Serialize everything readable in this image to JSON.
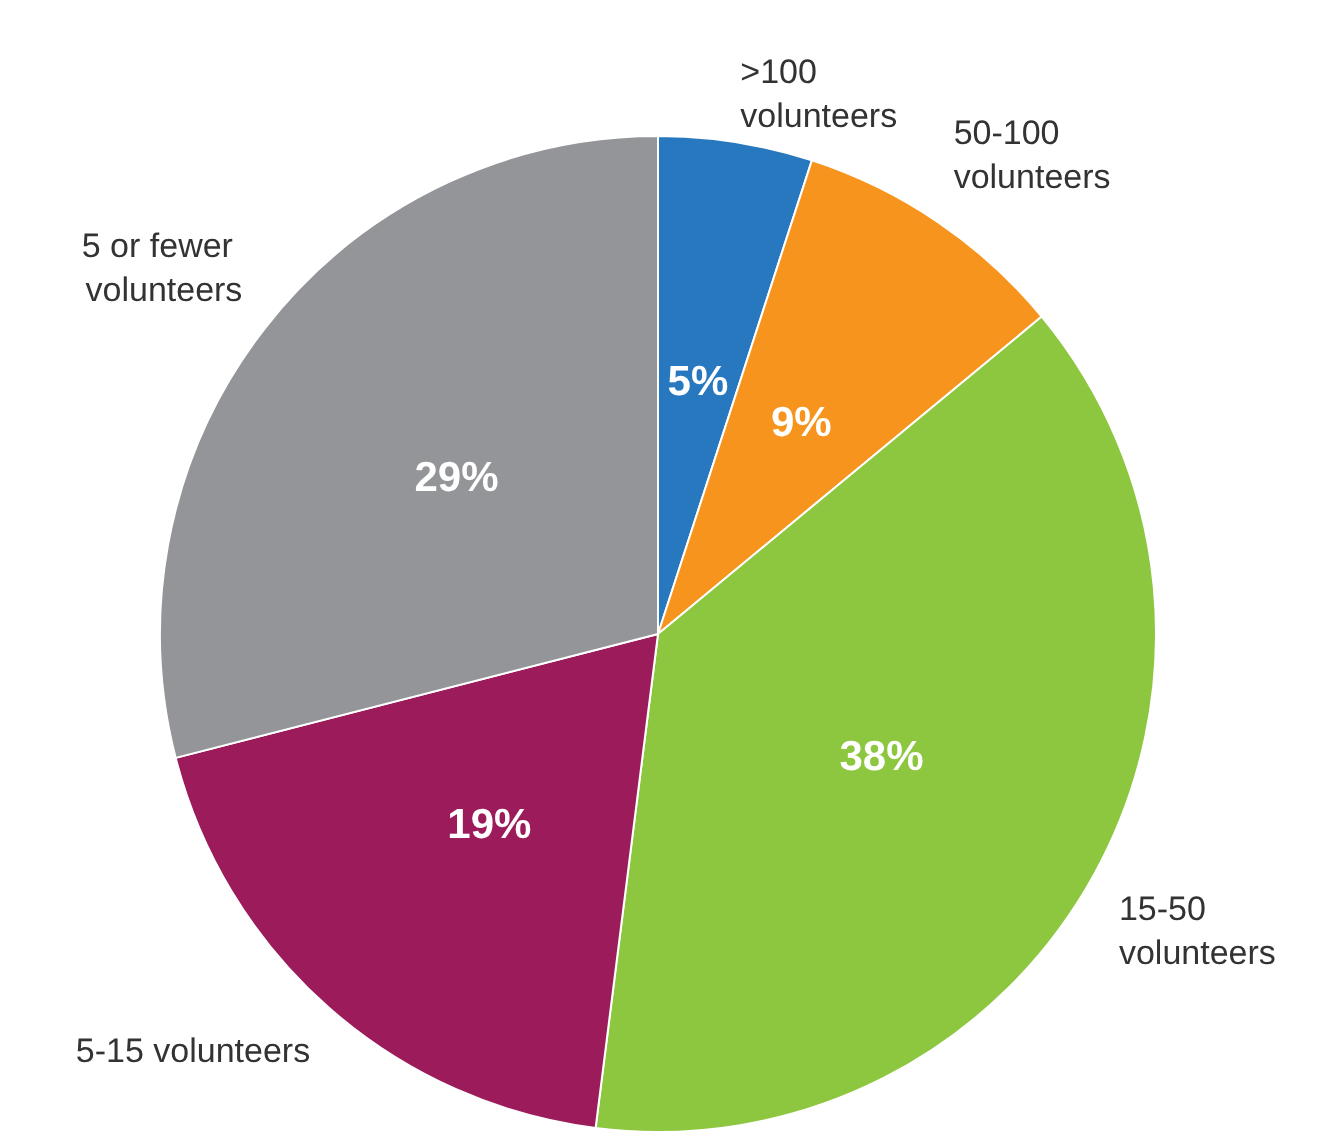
{
  "chart_data": {
    "type": "pie",
    "categories": [
      ">100 volunteers",
      "50-100 volunteers",
      "15-50 volunteers",
      "5-15 volunteers",
      "5 or fewer volunteers"
    ],
    "values": [
      5,
      9,
      38,
      19,
      29
    ],
    "colors": [
      "#2878c0",
      "#f7941d",
      "#8dc63f",
      "#9b1b5b",
      "#939598"
    ],
    "value_labels": [
      "5%",
      "9%",
      "38%",
      "19%",
      "29%"
    ],
    "legend": false
  }
}
